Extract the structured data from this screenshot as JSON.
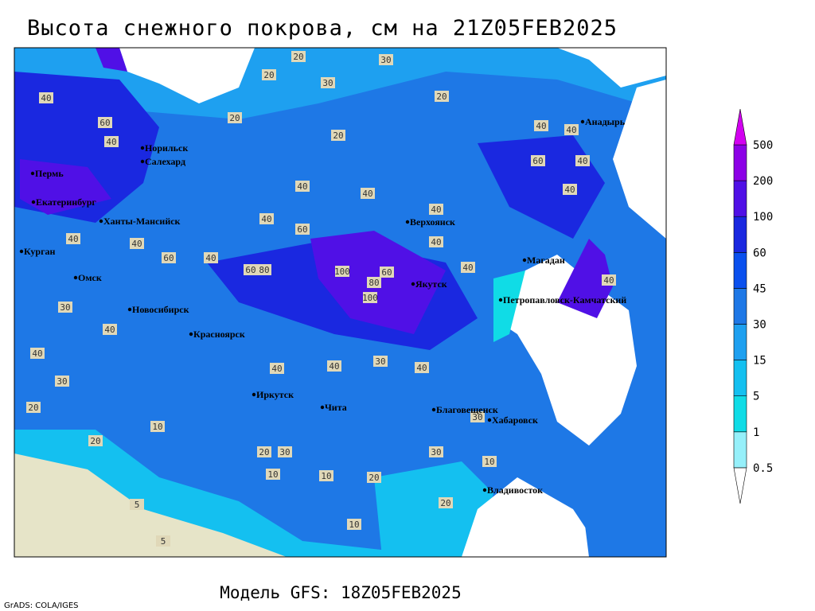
{
  "title": "Высота снежного покрова, см на 21Z05FEB2025",
  "footer": "Модель GFS: 18Z05FEB2025",
  "credit": "GrADS: COLA/IGES",
  "legend": {
    "levels": [
      0.5,
      1,
      5,
      15,
      30,
      45,
      60,
      100,
      200,
      500
    ],
    "colors": [
      "#ffffff",
      "#96f0fa",
      "#10dce6",
      "#14c0f0",
      "#1ea0f0",
      "#1e78e6",
      "#0a50ee",
      "#1a28e0",
      "#5010e6",
      "#8c00e6",
      "#d200f0"
    ]
  },
  "cities": [
    "Норильск",
    "Салехард",
    "Пермь",
    "Екатеринбург",
    "Ханты-Мансийск",
    "Курган",
    "Омск",
    "Новосибирск",
    "Красноярск",
    "Иркутск",
    "Чита",
    "Якутск",
    "Верхоянск",
    "Анадырь",
    "Магадан",
    "Петропавловск-Камчатский",
    "Благовещенск",
    "Хабаровск",
    "Владивосток"
  ],
  "contour_labels": [
    20,
    30,
    20,
    30,
    20,
    20,
    20,
    40,
    60,
    40,
    40,
    40,
    40,
    40,
    60,
    40,
    40,
    60,
    40,
    60,
    80,
    100,
    80,
    60,
    100,
    40,
    40,
    40,
    40,
    60,
    40,
    40,
    40,
    30,
    40,
    40,
    30,
    40,
    40,
    30,
    40,
    20,
    20,
    10,
    20,
    30,
    10,
    10,
    20,
    30,
    30,
    10,
    10,
    20,
    5,
    5
  ]
}
